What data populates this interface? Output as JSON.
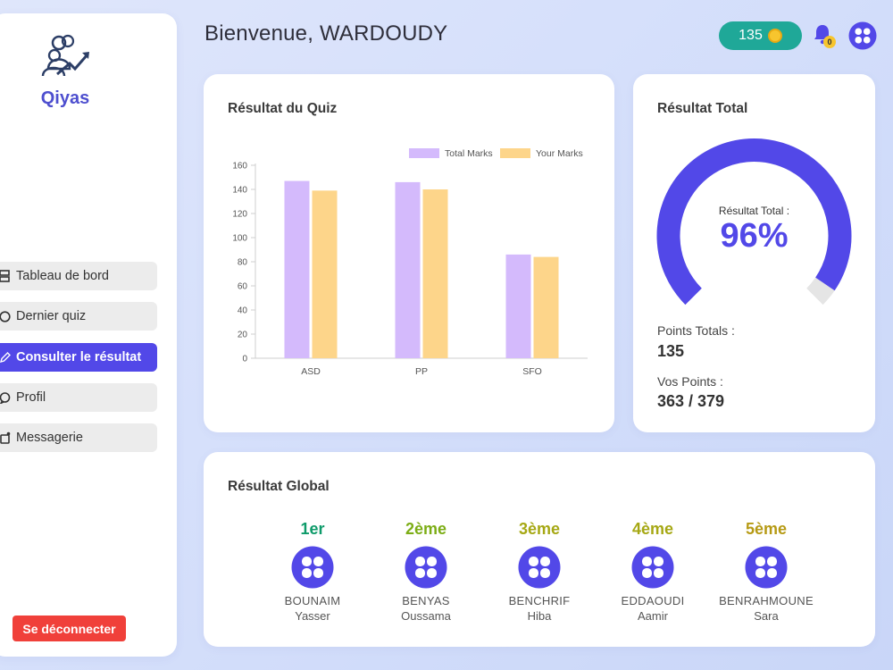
{
  "app": {
    "name": "Qiyas"
  },
  "sidebar": {
    "items": [
      {
        "label": "Tableau de bord",
        "icon": "dashboard-icon"
      },
      {
        "label": "Dernier quiz",
        "icon": "clock-icon"
      },
      {
        "label": "Consulter le résultat",
        "icon": "pencil-icon",
        "active": true
      },
      {
        "label": "Profil",
        "icon": "chat-icon"
      },
      {
        "label": "Messagerie",
        "icon": "message-icon"
      }
    ],
    "logout_label": "Se déconnecter"
  },
  "header": {
    "greeting": "Bienvenue, WARDOUDY",
    "coins": "135",
    "notifications": "0"
  },
  "quiz_card": {
    "title": "Résultat du Quiz"
  },
  "chart_data": {
    "type": "bar",
    "categories": [
      "ASD",
      "PP",
      "SFO"
    ],
    "series": [
      {
        "name": "Total Marks",
        "values": [
          147,
          146,
          86
        ],
        "color": "#d4bafc"
      },
      {
        "name": "Your Marks",
        "values": [
          139,
          140,
          84
        ],
        "color": "#fdd58a"
      }
    ],
    "ylim": [
      0,
      160
    ],
    "yticks": [
      0,
      20,
      40,
      60,
      80,
      100,
      120,
      140,
      160
    ],
    "legend": "top-right",
    "grid": false
  },
  "total_card": {
    "title": "Résultat Total",
    "gauge_label": "Résultat Total :",
    "gauge_value": "96%",
    "gauge_fraction": 0.96,
    "points_total_label": "Points Totals :",
    "points_total_value": "135",
    "vos_points_label": "Vos Points :",
    "vos_points_value": "363 / 379"
  },
  "global_card": {
    "title": "Résultat Global",
    "ranking": [
      {
        "rank": "1er",
        "last": "BOUNAIM",
        "first": "Yasser",
        "color": "#0e9b6a"
      },
      {
        "rank": "2ème",
        "last": "BENYAS",
        "first": "Oussama",
        "color": "#7cad15"
      },
      {
        "rank": "3ème",
        "last": "BENCHRIF",
        "first": "Hiba",
        "color": "#a6a814"
      },
      {
        "rank": "4ème",
        "last": "EDDAOUDI",
        "first": "Aamir",
        "color": "#a6a814"
      },
      {
        "rank": "5ème",
        "last": "BENRAHMOUNE",
        "first": "Sara",
        "color": "#b69a14"
      }
    ]
  },
  "colors": {
    "accent": "#5248e8",
    "coin_badge": "#1fa898",
    "logout": "#f0403a"
  }
}
